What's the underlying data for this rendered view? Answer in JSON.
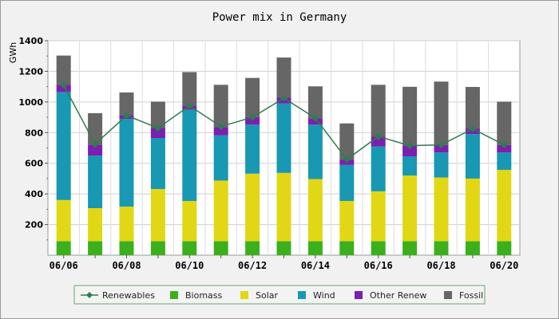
{
  "chart_data": {
    "type": "bar",
    "title": "Power mix in Germany",
    "ylabel": "GWh",
    "xlabel": "",
    "ylim": [
      0,
      1400
    ],
    "yticks": [
      200,
      400,
      600,
      800,
      1000,
      1200,
      1400
    ],
    "grid": true,
    "legend_position": "bottom",
    "categories": [
      "06/06",
      "06/07",
      "06/08",
      "06/09",
      "06/10",
      "06/11",
      "06/12",
      "06/13",
      "06/14",
      "06/15",
      "06/16",
      "06/17",
      "06/18",
      "06/19",
      "06/20"
    ],
    "xtick_labels": [
      "06/06",
      "06/08",
      "06/10",
      "06/12",
      "06/14",
      "06/16",
      "06/18",
      "06/20"
    ],
    "series": [
      {
        "name": "Biomass",
        "color": "#3cb01c",
        "values": [
          92,
          92,
          92,
          92,
          92,
          92,
          92,
          92,
          92,
          92,
          92,
          92,
          92,
          92,
          92
        ]
      },
      {
        "name": "Solar",
        "color": "#e2d714",
        "values": [
          268,
          215,
          225,
          340,
          262,
          395,
          440,
          445,
          405,
          262,
          325,
          428,
          415,
          408,
          465
        ]
      },
      {
        "name": "Wind",
        "color": "#1898b2",
        "values": [
          705,
          343,
          572,
          333,
          595,
          295,
          320,
          453,
          355,
          235,
          293,
          125,
          163,
          290,
          113
        ]
      },
      {
        "name": "Other Renew",
        "color": "#7a1fb0",
        "values": [
          48,
          72,
          25,
          65,
          28,
          55,
          50,
          38,
          42,
          35,
          65,
          70,
          50,
          35,
          50
        ]
      },
      {
        "name": "Fossil",
        "color": "#666666",
        "values": [
          190,
          205,
          148,
          172,
          218,
          275,
          255,
          262,
          208,
          236,
          337,
          384,
          413,
          273,
          282
        ]
      }
    ],
    "line_series": {
      "name": "Renewables",
      "color": "#2e7d4f",
      "values": [
        1110,
        725,
        912,
        830,
        975,
        840,
        900,
        1025,
        895,
        625,
        775,
        715,
        720,
        825,
        720
      ]
    }
  }
}
